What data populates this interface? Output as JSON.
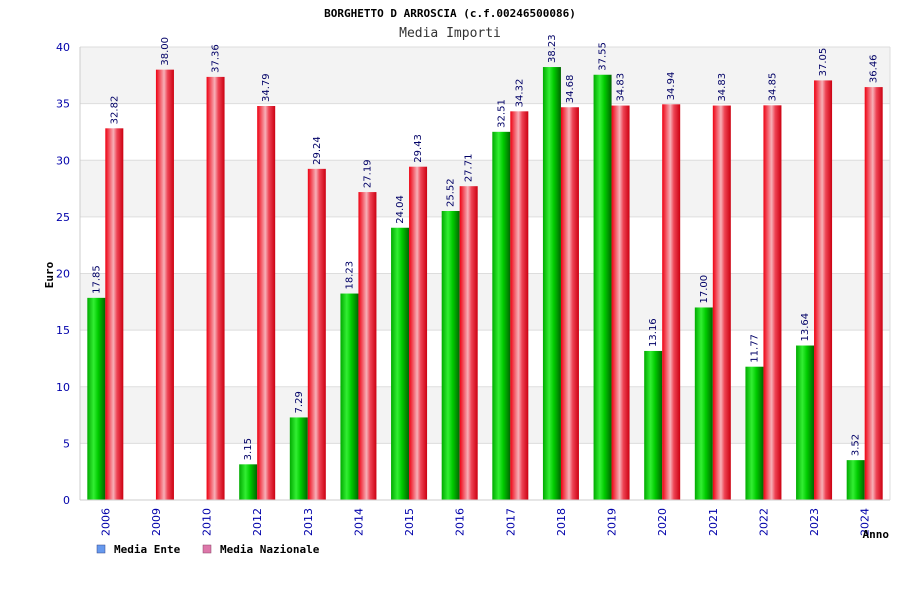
{
  "chart_data": {
    "type": "bar",
    "title": "BORGHETTO D ARROSCIA (c.f.00246500086)",
    "subtitle": "Media Importi",
    "ylabel": "Euro",
    "xlabel": "Anno",
    "ylim": [
      0,
      40
    ],
    "yticks": [
      "0",
      "5",
      "10",
      "15",
      "20",
      "25",
      "30",
      "35",
      "40"
    ],
    "grid": true,
    "legend_position": "bottom-left",
    "categories": [
      "2006",
      "2009",
      "2010",
      "2012",
      "2013",
      "2014",
      "2015",
      "2016",
      "2017",
      "2018",
      "2019",
      "2020",
      "2021",
      "2022",
      "2023",
      "2024"
    ],
    "series": [
      {
        "name": "Media Ente",
        "legend_color": "#6699ee",
        "bar_color": "#00bb00",
        "values": [
          17.85,
          null,
          null,
          3.15,
          7.29,
          18.23,
          24.04,
          25.52,
          32.51,
          38.23,
          37.55,
          13.16,
          17.0,
          11.77,
          13.64,
          3.52
        ],
        "labels": [
          "17.85",
          "",
          "",
          "3.15",
          "7.29",
          "18.23",
          "24.04",
          "25.52",
          "32.51",
          "38.23",
          "37.55",
          "13.16",
          "17.00",
          "11.77",
          "13.64",
          "3.52"
        ]
      },
      {
        "name": "Media Nazionale",
        "legend_color": "#dd77aa",
        "bar_color": "#ee1122",
        "values": [
          32.82,
          38.0,
          37.36,
          34.79,
          29.24,
          27.19,
          29.43,
          27.71,
          34.32,
          34.68,
          34.83,
          34.94,
          34.83,
          34.85,
          37.05,
          36.46
        ],
        "labels": [
          "32.82",
          "38.00",
          "37.36",
          "34.79",
          "29.24",
          "27.19",
          "29.43",
          "27.71",
          "34.32",
          "34.68",
          "34.83",
          "34.94",
          "34.83",
          "34.85",
          "37.05",
          "36.46"
        ]
      }
    ]
  }
}
